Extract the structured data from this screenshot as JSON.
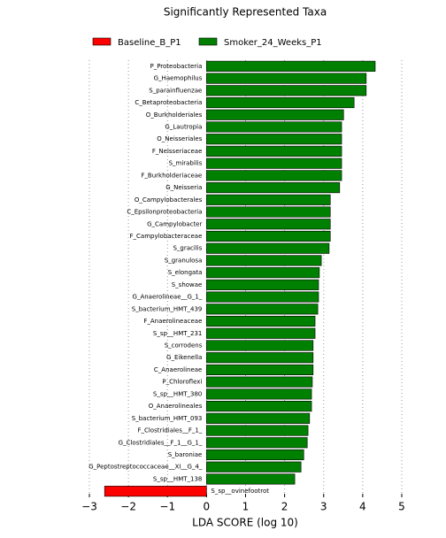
{
  "chart_data": {
    "type": "bar",
    "orientation": "horizontal",
    "title": "Significantly Represented Taxa",
    "x_label": "LDA SCORE (log 10)",
    "categories": [
      "P_Proteobacteria",
      "G_Haemophilus",
      "S_parainfluenzae",
      "C_Betaproteobacteria",
      "O_Burkholderiales",
      "G_Lautropia",
      "O_Neisseriales",
      "F_Neisseriaceae",
      "S_mirabilis",
      "F_Burkholderiaceae",
      "G_Neisseria",
      "O_Campylobacterales",
      "C_Epsilonproteobacteria",
      "G_Campylobacter",
      "F_Campylobacteraceae",
      "S_gracilis",
      "S_granulosa",
      "S_elongata",
      "S_showae",
      "G_Anaerolineae__G_1_",
      "S_bacterium_HMT_439",
      "F_Anaerolineaceae",
      "S_sp__HMT_231",
      "S_corrodens",
      "G_Eikenella",
      "C_Anaerolineae",
      "P_Chloroflexi",
      "S_sp__HMT_380",
      "O_Anaerolineales",
      "S_bacterium_HMT_093",
      "F_Clostridiales__F_1_",
      "G_Clostridiales__F_1__G_1_",
      "S_baroniae",
      "G_Peptostreptococcaceae__XI__G_4_",
      "S_sp__HMT_138",
      "S_sp__ovinefootrot"
    ],
    "series": [
      {
        "name": "Baseline_B_P1",
        "color": "#ff0000",
        "values": [
          null,
          null,
          null,
          null,
          null,
          null,
          null,
          null,
          null,
          null,
          null,
          null,
          null,
          null,
          null,
          null,
          null,
          null,
          null,
          null,
          null,
          null,
          null,
          null,
          null,
          null,
          null,
          null,
          null,
          null,
          null,
          null,
          null,
          null,
          null,
          -2.61
        ]
      },
      {
        "name": "Smoker_24_Weeks_P1",
        "color": "#008000",
        "values": [
          4.32,
          4.09,
          4.09,
          3.78,
          3.51,
          3.46,
          3.46,
          3.46,
          3.46,
          3.46,
          3.41,
          3.17,
          3.17,
          3.17,
          3.17,
          3.14,
          2.94,
          2.89,
          2.87,
          2.87,
          2.85,
          2.78,
          2.78,
          2.73,
          2.73,
          2.73,
          2.71,
          2.69,
          2.69,
          2.64,
          2.6,
          2.58,
          2.49,
          2.42,
          2.26,
          null
        ]
      }
    ],
    "xlim": [
      -3,
      5
    ],
    "xticks": [
      {
        "value": -3,
        "label": "−3"
      },
      {
        "value": -2,
        "label": "−2"
      },
      {
        "value": -1,
        "label": "−1"
      },
      0,
      1,
      2,
      3,
      4,
      5
    ],
    "grid": true
  }
}
